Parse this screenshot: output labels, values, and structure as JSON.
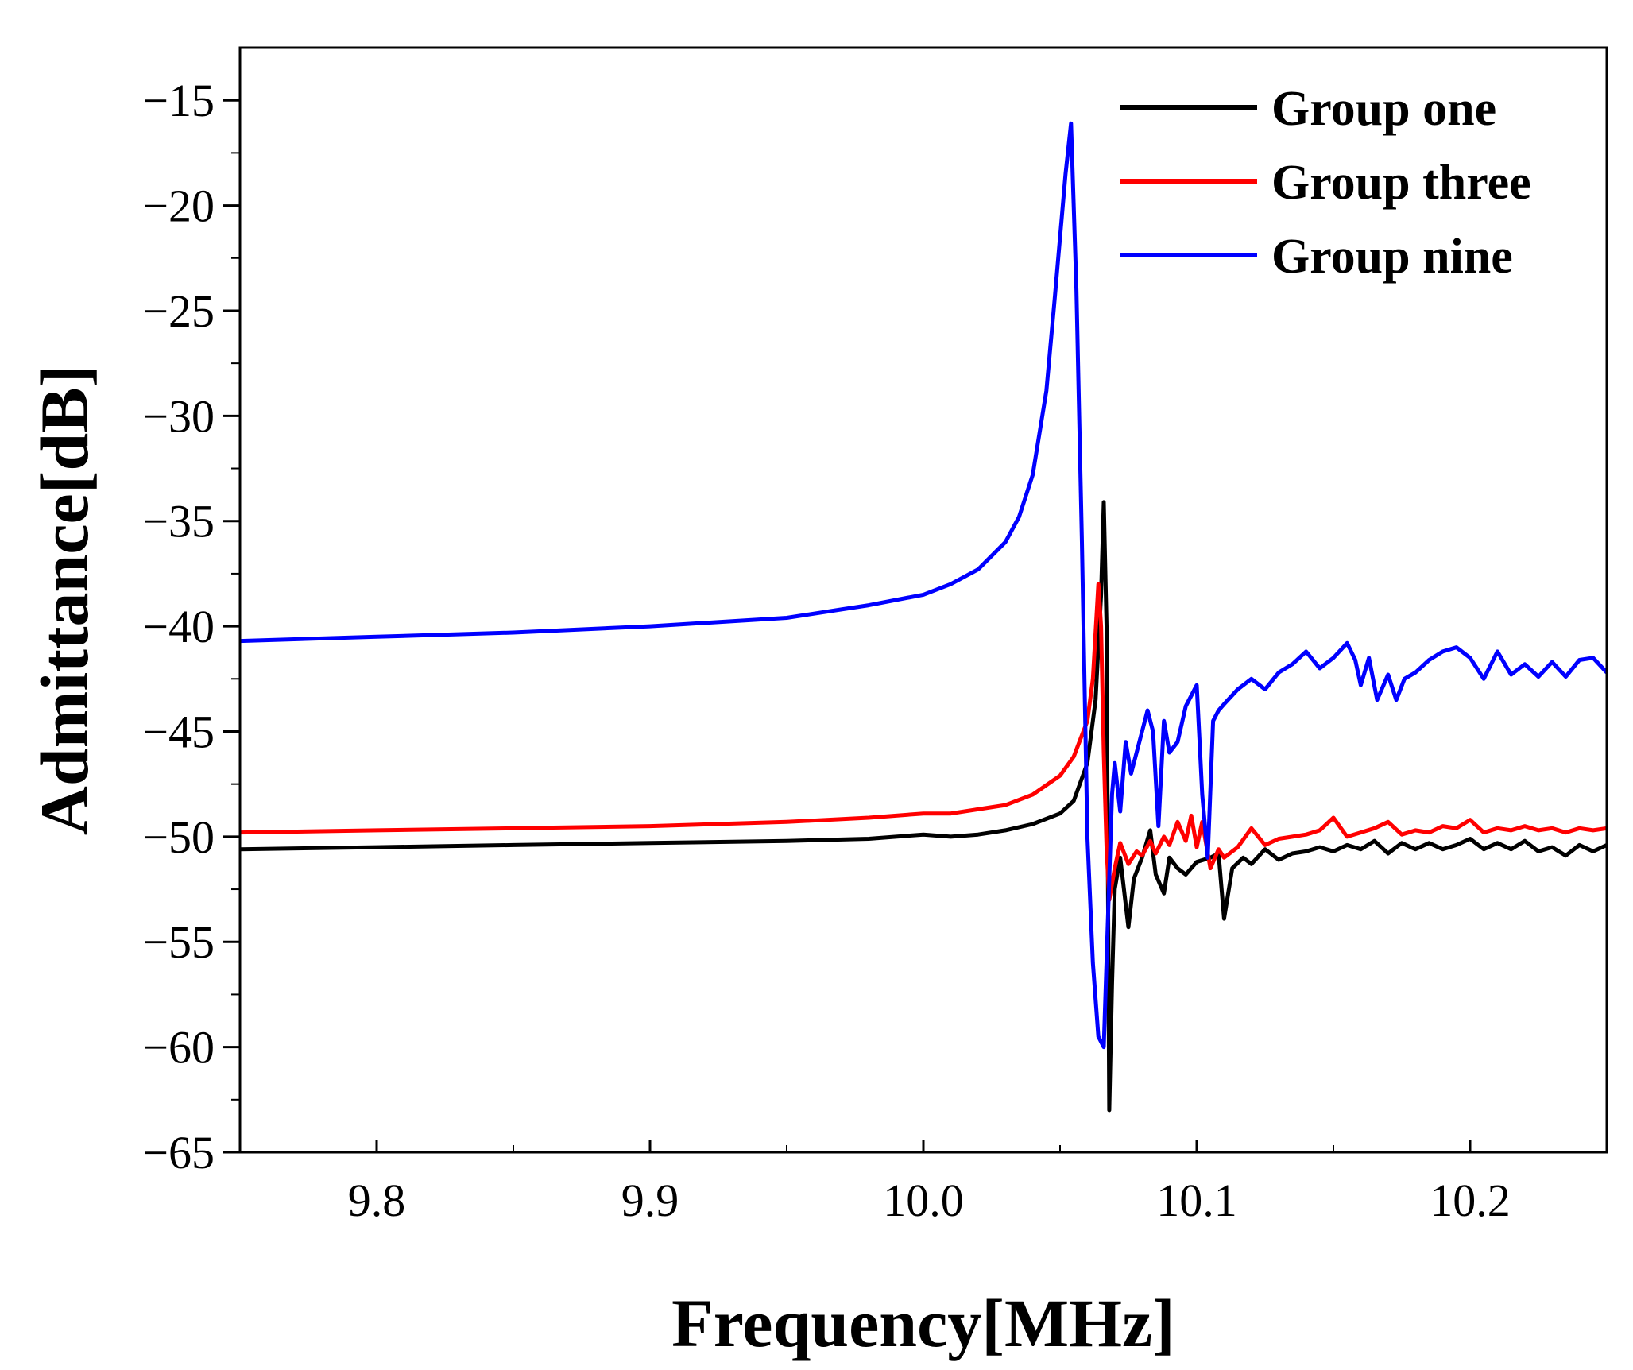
{
  "chart_data": {
    "type": "line",
    "title": "",
    "xlabel": "Frequency[MHz]",
    "ylabel": "Admittance[dB]",
    "xlim": [
      9.75,
      10.25
    ],
    "ylim": [
      -65,
      -12.5
    ],
    "xticks": [
      9.8,
      9.9,
      10.0,
      10.1,
      10.2
    ],
    "xtick_labels": [
      "9.8",
      "9.9",
      "10.0",
      "10.1",
      "10.2"
    ],
    "yticks": [
      -15,
      -20,
      -25,
      -30,
      -35,
      -40,
      -45,
      -50,
      -55,
      -60,
      -65
    ],
    "ytick_labels": [
      "−15",
      "−20",
      "−25",
      "−30",
      "−35",
      "−40",
      "−45",
      "−50",
      "−55",
      "−60",
      "−65"
    ],
    "grid": false,
    "legend_position": "top-right",
    "series": [
      {
        "name": "Group one",
        "color": "#000000",
        "x": [
          9.75,
          9.8,
          9.85,
          9.9,
          9.95,
          9.98,
          10.0,
          10.01,
          10.02,
          10.03,
          10.04,
          10.05,
          10.055,
          10.06,
          10.063,
          10.065,
          10.066,
          10.067,
          10.068,
          10.069,
          10.07,
          10.072,
          10.075,
          10.077,
          10.08,
          10.083,
          10.085,
          10.088,
          10.09,
          10.093,
          10.096,
          10.1,
          10.105,
          10.108,
          10.11,
          10.113,
          10.117,
          10.12,
          10.125,
          10.13,
          10.135,
          10.14,
          10.145,
          10.15,
          10.155,
          10.16,
          10.165,
          10.17,
          10.175,
          10.18,
          10.185,
          10.19,
          10.195,
          10.2,
          10.205,
          10.21,
          10.215,
          10.22,
          10.225,
          10.23,
          10.235,
          10.24,
          10.245,
          10.25
        ],
        "y": [
          -50.6,
          -50.5,
          -50.4,
          -50.3,
          -50.2,
          -50.1,
          -49.9,
          -50.0,
          -49.9,
          -49.7,
          -49.4,
          -48.9,
          -48.3,
          -46.5,
          -43.5,
          -38.5,
          -34.1,
          -40.0,
          -63.0,
          -57.0,
          -52.5,
          -51.0,
          -54.3,
          -52.0,
          -51.0,
          -49.7,
          -51.8,
          -52.7,
          -51.0,
          -51.5,
          -51.8,
          -51.2,
          -51.0,
          -50.8,
          -53.9,
          -51.5,
          -51.0,
          -51.3,
          -50.6,
          -51.1,
          -50.8,
          -50.7,
          -50.5,
          -50.7,
          -50.4,
          -50.6,
          -50.2,
          -50.8,
          -50.3,
          -50.6,
          -50.3,
          -50.6,
          -50.4,
          -50.1,
          -50.6,
          -50.3,
          -50.6,
          -50.2,
          -50.7,
          -50.5,
          -50.9,
          -50.4,
          -50.7,
          -50.4
        ]
      },
      {
        "name": "Group three",
        "color": "#ff0000",
        "x": [
          9.75,
          9.8,
          9.85,
          9.9,
          9.95,
          9.98,
          10.0,
          10.01,
          10.02,
          10.03,
          10.04,
          10.05,
          10.055,
          10.06,
          10.062,
          10.064,
          10.065,
          10.066,
          10.067,
          10.068,
          10.07,
          10.072,
          10.075,
          10.078,
          10.08,
          10.083,
          10.085,
          10.088,
          10.09,
          10.093,
          10.096,
          10.098,
          10.1,
          10.102,
          10.105,
          10.108,
          10.11,
          10.115,
          10.12,
          10.125,
          10.13,
          10.135,
          10.14,
          10.145,
          10.15,
          10.155,
          10.16,
          10.165,
          10.17,
          10.175,
          10.18,
          10.185,
          10.19,
          10.195,
          10.2,
          10.205,
          10.21,
          10.215,
          10.22,
          10.225,
          10.23,
          10.235,
          10.24,
          10.245,
          10.25
        ],
        "y": [
          -49.8,
          -49.7,
          -49.6,
          -49.5,
          -49.3,
          -49.1,
          -48.9,
          -48.9,
          -48.7,
          -48.5,
          -48.0,
          -47.1,
          -46.2,
          -44.5,
          -42.5,
          -38.0,
          -40.0,
          -46.0,
          -50.5,
          -53.0,
          -51.5,
          -50.3,
          -51.3,
          -50.7,
          -50.9,
          -50.2,
          -50.8,
          -50.0,
          -50.4,
          -49.3,
          -50.2,
          -49.0,
          -50.5,
          -49.3,
          -51.5,
          -50.6,
          -51.0,
          -50.5,
          -49.6,
          -50.4,
          -50.1,
          -50.0,
          -49.9,
          -49.7,
          -49.1,
          -50.0,
          -49.8,
          -49.6,
          -49.3,
          -49.9,
          -49.7,
          -49.8,
          -49.5,
          -49.6,
          -49.2,
          -49.8,
          -49.6,
          -49.7,
          -49.5,
          -49.7,
          -49.6,
          -49.8,
          -49.6,
          -49.7,
          -49.6
        ]
      },
      {
        "name": "Group nine",
        "color": "#0000ff",
        "x": [
          9.75,
          9.8,
          9.85,
          9.9,
          9.95,
          9.97,
          9.98,
          10.0,
          10.01,
          10.02,
          10.03,
          10.035,
          10.04,
          10.045,
          10.048,
          10.05,
          10.052,
          10.054,
          10.056,
          10.058,
          10.06,
          10.062,
          10.064,
          10.066,
          10.068,
          10.069,
          10.07,
          10.072,
          10.074,
          10.076,
          10.078,
          10.08,
          10.082,
          10.084,
          10.086,
          10.088,
          10.09,
          10.093,
          10.096,
          10.1,
          10.102,
          10.104,
          10.106,
          10.108,
          10.11,
          10.115,
          10.12,
          10.125,
          10.13,
          10.135,
          10.14,
          10.145,
          10.15,
          10.155,
          10.158,
          10.16,
          10.163,
          10.166,
          10.17,
          10.173,
          10.176,
          10.18,
          10.185,
          10.19,
          10.195,
          10.2,
          10.205,
          10.21,
          10.215,
          10.22,
          10.225,
          10.23,
          10.235,
          10.24,
          10.245,
          10.25
        ],
        "y": [
          -40.7,
          -40.5,
          -40.3,
          -40.0,
          -39.6,
          -39.2,
          -39.0,
          -38.5,
          -38.0,
          -37.3,
          -36.0,
          -34.8,
          -32.8,
          -28.8,
          -24.5,
          -21.5,
          -18.5,
          -16.1,
          -24.0,
          -36.0,
          -50.0,
          -56.0,
          -59.5,
          -60.0,
          -52.0,
          -48.0,
          -46.5,
          -48.8,
          -45.5,
          -47.0,
          -46.0,
          -45.0,
          -44.0,
          -45.0,
          -49.5,
          -44.5,
          -46.0,
          -45.5,
          -43.8,
          -42.8,
          -48.0,
          -51.0,
          -44.5,
          -44.0,
          -43.7,
          -43.0,
          -42.5,
          -43.0,
          -42.2,
          -41.8,
          -41.2,
          -42.0,
          -41.5,
          -40.8,
          -41.6,
          -42.8,
          -41.5,
          -43.5,
          -42.3,
          -43.5,
          -42.5,
          -42.2,
          -41.6,
          -41.2,
          -41.0,
          -41.5,
          -42.5,
          -41.2,
          -42.3,
          -41.8,
          -42.4,
          -41.7,
          -42.4,
          -41.6,
          -41.5,
          -42.2
        ]
      }
    ]
  }
}
